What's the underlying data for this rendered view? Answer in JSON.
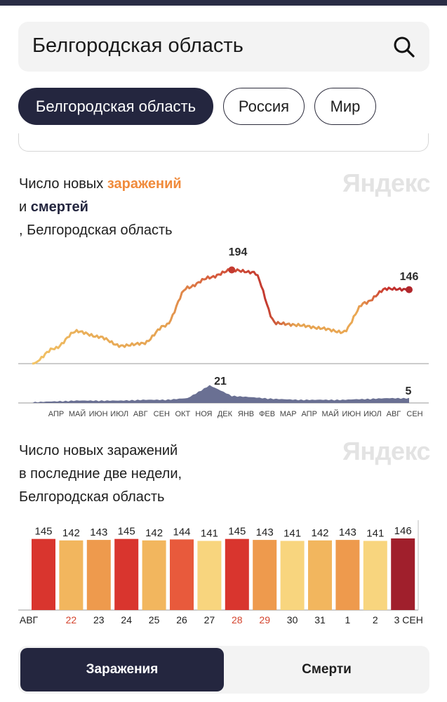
{
  "search": {
    "query": "Белгородская область"
  },
  "regions": {
    "items": [
      "Белгородская область",
      "Россия",
      "Мир"
    ],
    "active": 0
  },
  "watermark": "Яндекс",
  "chart1": {
    "title_part1": "Число новых ",
    "title_accent": "заражений",
    "title_and": "и ",
    "title_deaths": "смертей",
    "title_region": ", Белгородская область",
    "infections_peak_label": "194",
    "infections_last_label": "146",
    "deaths_peak_label": "21",
    "deaths_last_label": "5",
    "months": [
      "АПР",
      "МАЙ",
      "ИЮН",
      "ИЮЛ",
      "АВГ",
      "СЕН",
      "ОКТ",
      "НОЯ",
      "ДЕК",
      "ЯНВ",
      "ФЕВ",
      "МАР",
      "АПР",
      "МАЙ",
      "ИЮН",
      "ИЮЛ",
      "АВГ",
      "СЕН"
    ]
  },
  "chart2": {
    "title_line1": "Число новых заражений",
    "title_line2": "в последние две недели,",
    "title_line3": "Белгородская область"
  },
  "colors": {
    "accent_orange": "#f08b3c",
    "navy": "#24263f",
    "deaths_line": "#5a6187"
  },
  "chart_data": [
    {
      "type": "line",
      "x": [
        "АПР",
        "МАЙ",
        "ИЮН",
        "ИЮЛ",
        "АВГ",
        "СЕН",
        "ОКТ",
        "НОЯ",
        "ДЕК",
        "ЯНВ",
        "ФЕВ",
        "МАР",
        "АПР",
        "МАЙ",
        "ИЮН",
        "ИЮЛ",
        "АВГ",
        "СЕН"
      ],
      "series": [
        {
          "name": "заражений",
          "values": [
            0,
            30,
            64,
            53,
            35,
            40,
            75,
            150,
            170,
            185,
            180,
            80,
            76,
            70,
            62,
            120,
            148,
            146
          ]
        },
        {
          "name": "смертей",
          "values": [
            0,
            1,
            2,
            2,
            2,
            3,
            3,
            5,
            21,
            8,
            6,
            4,
            3,
            3,
            3,
            4,
            5,
            5
          ]
        }
      ],
      "ylim": [
        0,
        200
      ]
    },
    {
      "type": "bar",
      "categories": [
        "АВГ",
        "22",
        "23",
        "24",
        "25",
        "26",
        "27",
        "28",
        "29",
        "30",
        "31",
        "1",
        "2",
        "3 СЕН"
      ],
      "values": [
        145,
        142,
        143,
        145,
        142,
        144,
        141,
        145,
        143,
        141,
        142,
        143,
        141,
        146
      ],
      "colors": [
        "#d9352e",
        "#f2b65e",
        "#ee9a4d",
        "#d9352e",
        "#f2b65e",
        "#e85a3c",
        "#f8d57e",
        "#d9352e",
        "#ee9a4d",
        "#f8d57e",
        "#f2b65e",
        "#ee9a4d",
        "#f8d57e",
        "#a01f2c"
      ],
      "label_colors": [
        "#1e1e1e",
        "#d4442e",
        "#1e1e1e",
        "#1e1e1e",
        "#1e1e1e",
        "#1e1e1e",
        "#1e1e1e",
        "#d4442e",
        "#d4442e",
        "#1e1e1e",
        "#1e1e1e",
        "#1e1e1e",
        "#1e1e1e",
        "#1e1e1e"
      ],
      "ylim": [
        0,
        150
      ]
    }
  ],
  "toggle": {
    "infections": "Заражения",
    "deaths": "Смерти"
  }
}
